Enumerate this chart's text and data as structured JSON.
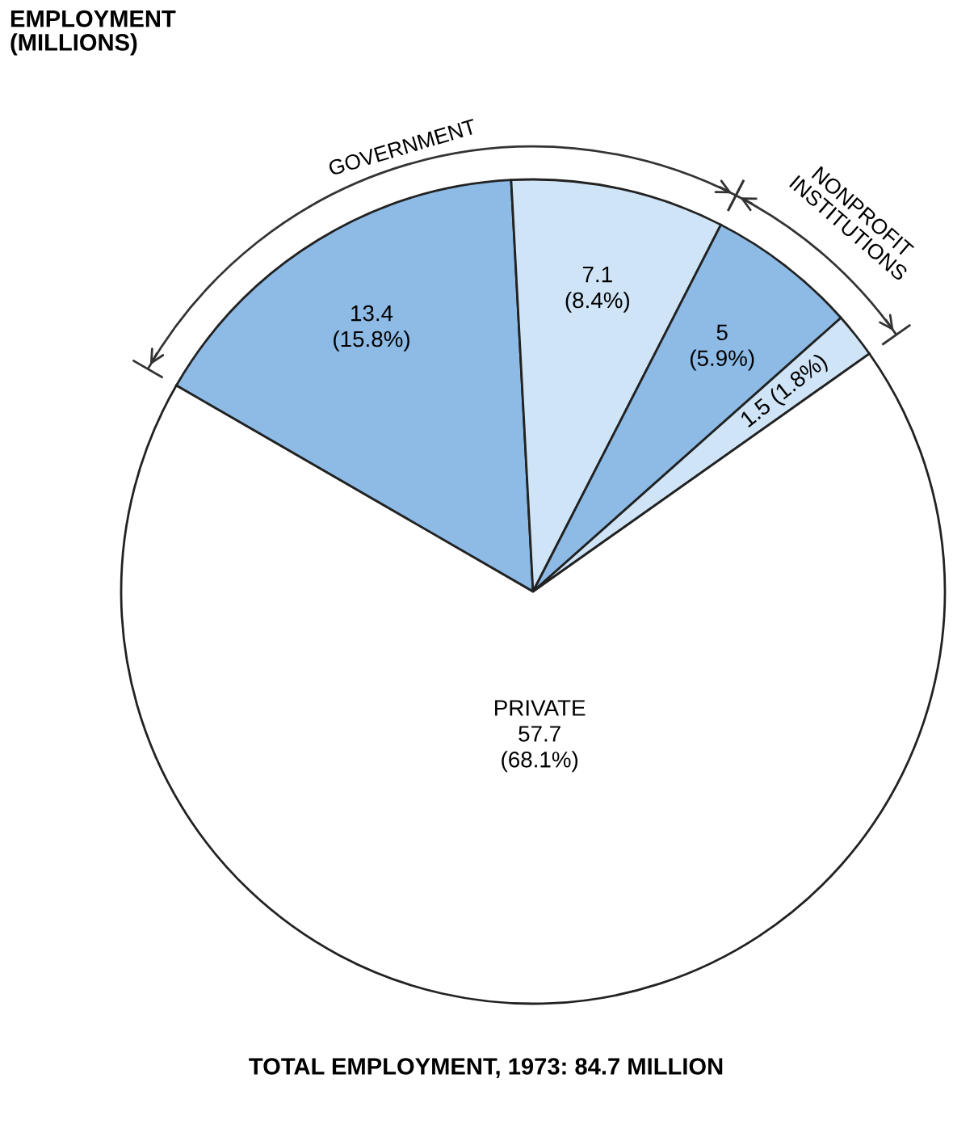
{
  "chart_data": {
    "type": "pie",
    "title": "EMPLOYMENT\n(MILLIONS)",
    "categories": [
      null,
      null,
      null,
      null,
      "PRIVATE"
    ],
    "values": [
      13.4,
      7.1,
      5,
      1.5,
      57.7
    ],
    "colors": [
      "#8dbbe6",
      "#cfe4f6",
      "#8dbbe6",
      "#cfe4f6",
      "#ffffff"
    ],
    "value_labels": [
      "13.4\n(15.8%)",
      "7.1\n(8.4%)",
      "5\n(5.9%)",
      "1.5 (1.8%)",
      "57.7\n(68.1%)"
    ],
    "annotations": [
      "GOVERNMENT",
      "NONPROFIT\nINSTITUTIONS",
      "TOTAL EMPLOYMENT, 1973: 84.7 MILLION"
    ]
  }
}
